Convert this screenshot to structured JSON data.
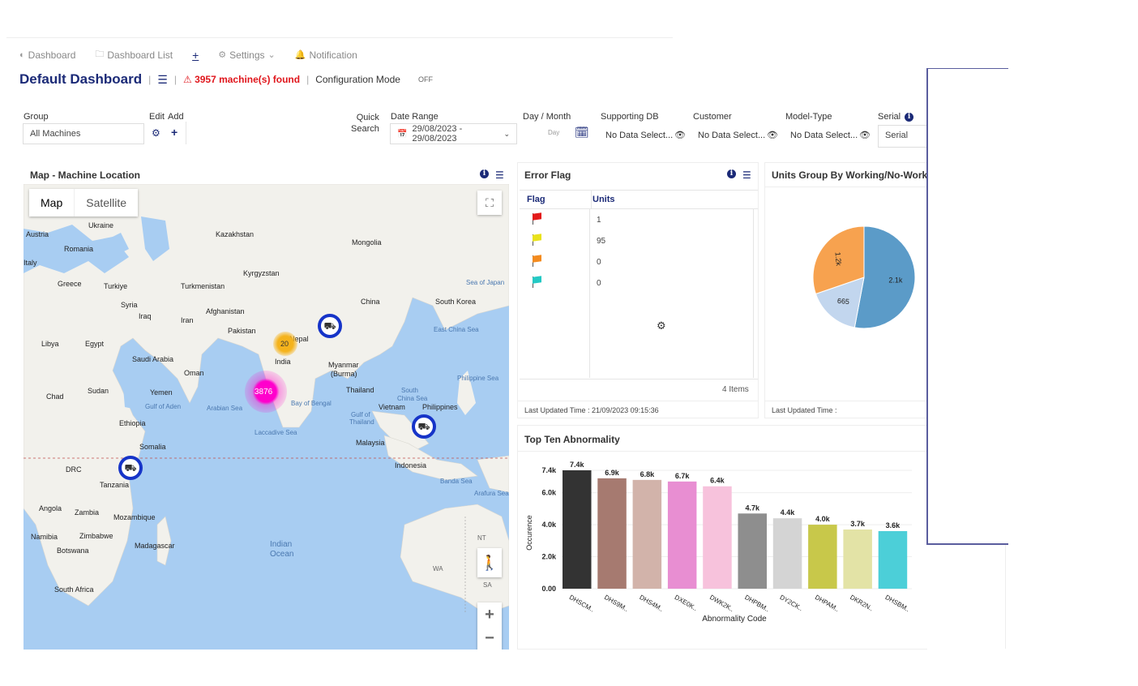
{
  "nav": {
    "items": [
      {
        "label": "Dashboard",
        "icon": "dashboard-icon"
      },
      {
        "label": "Dashboard List",
        "icon": "folder-icon"
      },
      {
        "label": "",
        "icon": "add-dashboard-icon"
      },
      {
        "label": "Settings",
        "icon": "gear-icon"
      },
      {
        "label": "Notification",
        "icon": "bell-icon"
      }
    ]
  },
  "header": {
    "title": "Default Dashboard",
    "machines_found": "3957 machine(s) found",
    "config_mode": "Configuration Mode",
    "toggle_state": "OFF"
  },
  "filters": {
    "group_label": "Group",
    "group_value": "All Machines",
    "edit_label": "Edit",
    "add_label": "Add",
    "quick_search_line1": "Quick",
    "quick_search_line2": "Search",
    "date_range_label": "Date Range",
    "date_range_value": "29/08/2023 - 29/08/2023",
    "day_month_label": "Day / Month",
    "day_placeholder": "Day",
    "supporting_db_label": "Supporting DB",
    "supporting_db_value": "No Data Select...",
    "customer_label": "Customer",
    "customer_value": "No Data Select...",
    "model_type_label": "Model-Type",
    "model_type_value": "No Data Select...",
    "serial_label": "Serial",
    "serial_value": "Serial"
  },
  "map_card": {
    "title": "Map - Machine Location",
    "tab_map": "Map",
    "tab_satellite": "Satellite",
    "cluster_large": "3876",
    "cluster_medium": "20",
    "labels": [
      {
        "text": "Ukraine"
      },
      {
        "text": "Kazakhstan"
      },
      {
        "text": "Mongolia"
      },
      {
        "text": "Austria"
      },
      {
        "text": "Romania"
      },
      {
        "text": "Italy"
      },
      {
        "text": "Kyrgyzstan"
      },
      {
        "text": "Greece"
      },
      {
        "text": "Turkiye"
      },
      {
        "text": "Turkmenistan"
      },
      {
        "text": "Syria"
      },
      {
        "text": "Iraq"
      },
      {
        "text": "Afghanistan"
      },
      {
        "text": "China"
      },
      {
        "text": "South Korea"
      },
      {
        "text": "Sea of Japan"
      },
      {
        "text": "Iran"
      },
      {
        "text": "Pakistan"
      },
      {
        "text": "Nepal"
      },
      {
        "text": "Libya"
      },
      {
        "text": "Egypt"
      },
      {
        "text": "Saudi Arabia"
      },
      {
        "text": "India"
      },
      {
        "text": "Myanmar (Burma)"
      },
      {
        "text": "East China Sea"
      },
      {
        "text": "Oman"
      },
      {
        "text": "Philippine Sea"
      },
      {
        "text": "Chad"
      },
      {
        "text": "Sudan"
      },
      {
        "text": "Yemen"
      },
      {
        "text": "Thailand"
      },
      {
        "text": "South China Sea"
      },
      {
        "text": "Arabian Sea"
      },
      {
        "text": "Bay of Bengal"
      },
      {
        "text": "Vietnam"
      },
      {
        "text": "Philippines"
      },
      {
        "text": "Ethiopia"
      },
      {
        "text": "Gulf of Thailand"
      },
      {
        "text": "Laccadive Sea"
      },
      {
        "text": "Somalia"
      },
      {
        "text": "Malaysia"
      },
      {
        "text": "DRC"
      },
      {
        "text": "Indonesia"
      },
      {
        "text": "Tanzania"
      },
      {
        "text": "Banda Sea"
      },
      {
        "text": "Arafura Sea"
      },
      {
        "text": "Angola"
      },
      {
        "text": "Zambia"
      },
      {
        "text": "Mozambique"
      },
      {
        "text": "Namibia"
      },
      {
        "text": "Zimbabwe"
      },
      {
        "text": "Botswana"
      },
      {
        "text": "Madagascar"
      },
      {
        "text": "Indian Ocean"
      },
      {
        "text": "South Africa"
      },
      {
        "text": "WA"
      },
      {
        "text": "NT"
      },
      {
        "text": "SA"
      },
      {
        "text": "Gulf of Aden"
      }
    ]
  },
  "error_flag": {
    "title": "Error Flag",
    "col_flag": "Flag",
    "col_units": "Units",
    "rows": [
      {
        "color": "#e31b1b",
        "units": "1"
      },
      {
        "color": "#e9e21c",
        "units": "95"
      },
      {
        "color": "#f38b1f",
        "units": "0"
      },
      {
        "color": "#24c9c4",
        "units": "0"
      }
    ],
    "items_count": "4 Items",
    "last_updated": "Last Updated Time : 21/09/2023 09:15:36"
  },
  "units_group": {
    "title": "Units Group By Working/No-Working",
    "last_updated": "Last Updated Time :"
  },
  "abnormality": {
    "title": "Top Ten Abnormality"
  },
  "chart_data": [
    {
      "type": "pie",
      "title": "Units Group By Working/No-Working",
      "slices": [
        {
          "label": "2.1k",
          "value": 2100,
          "color": "#5b9bc8"
        },
        {
          "label": "665",
          "value": 665,
          "color": "#c2d6ee"
        },
        {
          "label": "1.2k",
          "value": 1200,
          "color": "#f7a24f"
        }
      ]
    },
    {
      "type": "bar",
      "title": "Top Ten Abnormality",
      "xlabel": "Abnormality Code",
      "ylabel": "Occurence",
      "categories": [
        "DHSCM..",
        "DHS9M..",
        "DHS4M..",
        "DXE0K..",
        "DWK2K..",
        "DHPBM..",
        "DY2CK..",
        "DHPAM..",
        "DKR2N..",
        "DHSBM.."
      ],
      "values": [
        7400,
        6900,
        6800,
        6700,
        6400,
        4700,
        4400,
        4000,
        3700,
        3600
      ],
      "data_labels": [
        "7.4k",
        "6.9k",
        "6.8k",
        "6.7k",
        "6.4k",
        "4.7k",
        "4.4k",
        "4.0k",
        "3.7k",
        "3.6k"
      ],
      "colors": [
        "#333333",
        "#a67a70",
        "#d2b3aa",
        "#e88ed2",
        "#f7c2dc",
        "#8e8e8e",
        "#d4d4d4",
        "#c8c84a",
        "#e3e3a6",
        "#4ccfd8"
      ],
      "yticks": [
        "0.00",
        "2.0k",
        "4.0k",
        "6.0k",
        "7.4k"
      ],
      "ytick_values": [
        0,
        2000,
        4000,
        6000,
        7400
      ],
      "ylim": [
        0,
        7400
      ],
      "grid": true
    }
  ]
}
